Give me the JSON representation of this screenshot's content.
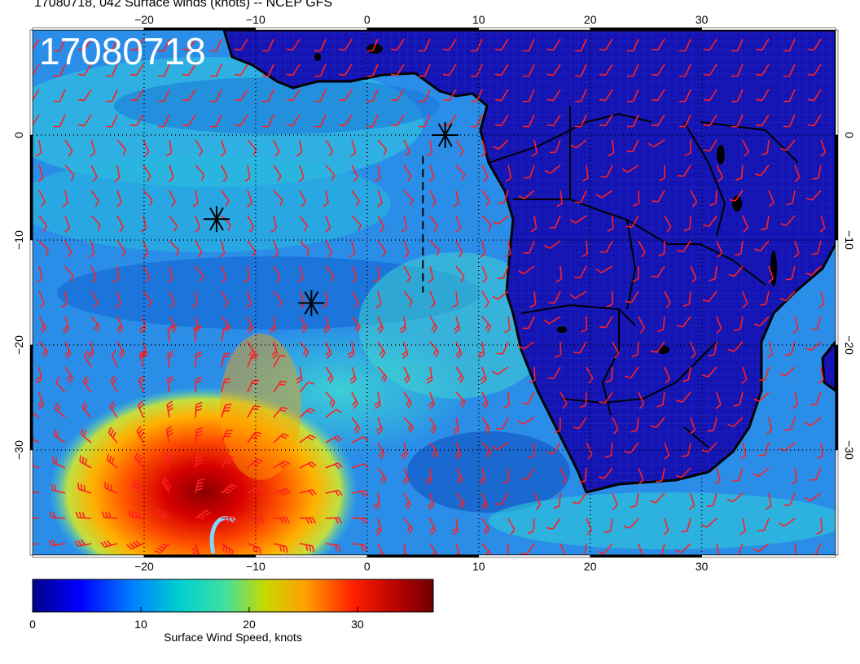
{
  "title": "17080718, 042 Surface winds (knots) -- NCEP GFS",
  "datetime_stamp": "17080718",
  "map": {
    "projection": "cylindrical",
    "lon_range": [
      -30,
      42
    ],
    "lat_range": [
      -40,
      10
    ],
    "lon_ticks": [
      {
        "value": -20,
        "label": "−20"
      },
      {
        "value": -10,
        "label": "−10"
      },
      {
        "value": 0,
        "label": "0"
      },
      {
        "value": 10,
        "label": "10"
      },
      {
        "value": 20,
        "label": "20"
      },
      {
        "value": 30,
        "label": "30"
      }
    ],
    "lat_ticks": [
      {
        "value": 0,
        "label": "0"
      },
      {
        "value": -10,
        "label": "−10"
      },
      {
        "value": -20,
        "label": "−20"
      },
      {
        "value": -30,
        "label": "−30"
      }
    ],
    "gridlines": "dotted",
    "wind_barb_color": "#ff2020",
    "coastline_color": "#000000",
    "markers": [
      {
        "type": "asterisk",
        "lon": -13.5,
        "lat": -8
      },
      {
        "type": "asterisk",
        "lon": -5,
        "lat": -16
      },
      {
        "type": "asterisk",
        "lon": 7,
        "lat": 0
      }
    ],
    "track_line": {
      "style": "dashed",
      "lon": 5,
      "lat_from": -15,
      "lat_to": -2
    },
    "cyclone_center": {
      "lon": -16,
      "lat": -37
    },
    "max_wind_knots": 37
  },
  "colorbar": {
    "title": "Surface Wind Speed, knots",
    "range": [
      0,
      37
    ],
    "ticks": [
      {
        "value": 0,
        "label": "0"
      },
      {
        "value": 10,
        "label": "10"
      },
      {
        "value": 20,
        "label": "20"
      },
      {
        "value": 30,
        "label": "30"
      }
    ],
    "colors": [
      "#00008b",
      "#0000ff",
      "#0080ff",
      "#00d0d0",
      "#40e0a0",
      "#c8d800",
      "#ffa000",
      "#ff2000",
      "#b00000",
      "#700000"
    ]
  }
}
